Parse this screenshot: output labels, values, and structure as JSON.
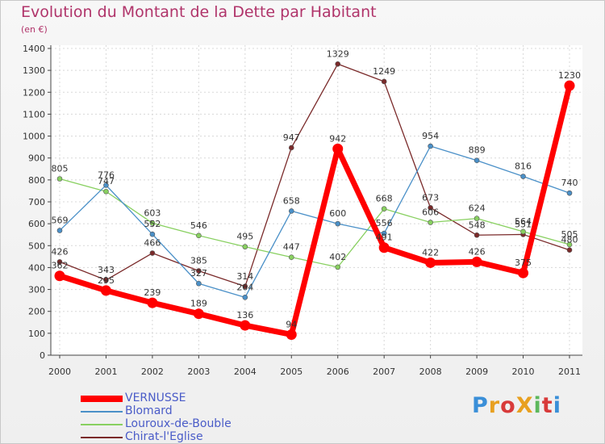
{
  "header": {
    "title": "Evolution du Montant de la Dette par Habitant",
    "unit": "(en €)"
  },
  "logo": {
    "text": "ProXiti",
    "colors": [
      "#3a8fd8",
      "#e8a020",
      "#d83a3a",
      "#e8a020",
      "#5cb85c",
      "#d83a3a",
      "#3a8fd8"
    ]
  },
  "chart_data": {
    "type": "line",
    "title": "Evolution du Montant de la Dette par Habitant",
    "ylabel": "(en €)",
    "xlabel": "",
    "x": [
      "2000",
      "2001",
      "2002",
      "2003",
      "2004",
      "2005",
      "2006",
      "2007",
      "2008",
      "2009",
      "2010",
      "2011"
    ],
    "ylim": [
      0,
      1400
    ],
    "yticks": [
      0,
      100,
      200,
      300,
      400,
      500,
      600,
      700,
      800,
      900,
      1000,
      1100,
      1200,
      1300,
      1400
    ],
    "grid": true,
    "legend_position": "bottom-left",
    "series": [
      {
        "name": "VERNUSSE",
        "color": "#ff0000",
        "values": [
          362,
          295,
          239,
          189,
          136,
          94,
          942,
          491,
          422,
          426,
          375,
          1230
        ]
      },
      {
        "name": "Blomard",
        "color": "#4a90c8",
        "values": [
          569,
          776,
          552,
          327,
          264,
          658,
          600,
          556,
          954,
          889,
          816,
          740
        ]
      },
      {
        "name": "Louroux-de-Bouble",
        "color": "#88d060",
        "values": [
          805,
          747,
          603,
          546,
          495,
          447,
          402,
          668,
          606,
          624,
          564,
          505
        ]
      },
      {
        "name": "Chirat-l'Eglise",
        "color": "#7a2a2a",
        "values": [
          426,
          343,
          466,
          385,
          314,
          947,
          1329,
          1249,
          673,
          548,
          551,
          480
        ]
      }
    ]
  }
}
